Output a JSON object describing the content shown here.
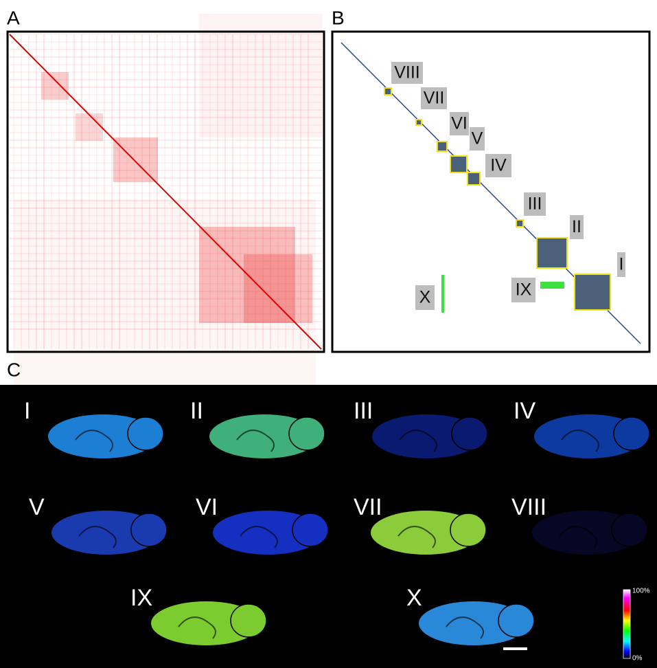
{
  "panels": {
    "a": {
      "label": "A"
    },
    "b": {
      "label": "B",
      "clusters": [
        "VIII",
        "VII",
        "VI",
        "V",
        "IV",
        "III",
        "II",
        "I",
        "IX",
        "X"
      ]
    },
    "c": {
      "label": "C",
      "sections": [
        "I",
        "II",
        "III",
        "IV",
        "V",
        "VI",
        "VII",
        "VIII",
        "IX",
        "X"
      ],
      "colorbar": {
        "max": "100%",
        "min": "0%"
      }
    }
  }
}
